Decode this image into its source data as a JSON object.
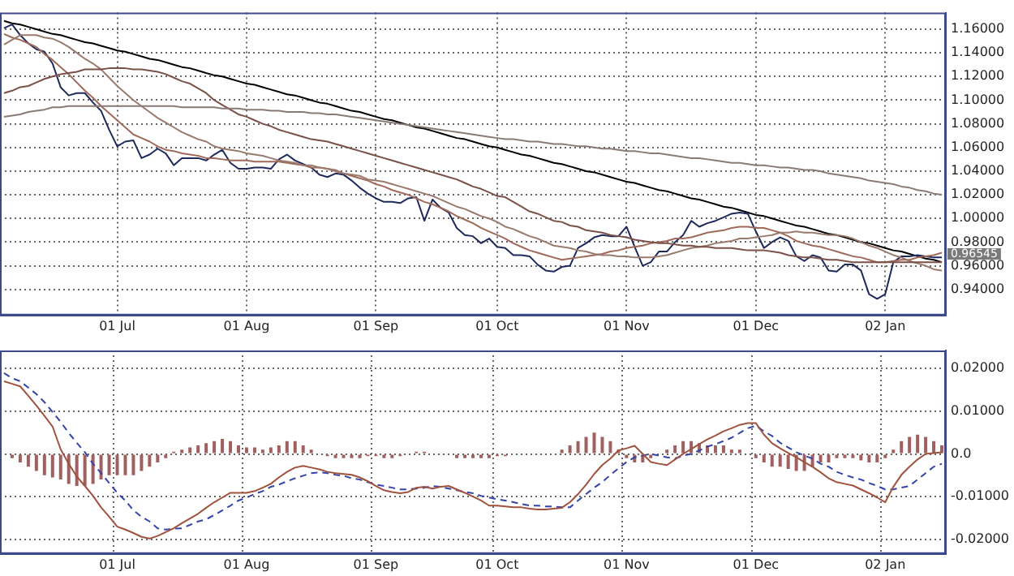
{
  "chart_data": [
    {
      "type": "line",
      "categories": [
        null,
        null,
        null,
        null,
        null,
        null,
        null,
        null,
        null,
        null,
        null,
        null,
        null,
        null,
        "01 Jul",
        null,
        null,
        null,
        null,
        null,
        null,
        null,
        null,
        null,
        null,
        null,
        null,
        null,
        null,
        null,
        "01 Aug",
        null,
        null,
        null,
        null,
        null,
        null,
        null,
        null,
        null,
        null,
        null,
        null,
        null,
        null,
        null,
        "01 Sep",
        null,
        null,
        null,
        null,
        null,
        null,
        null,
        null,
        null,
        null,
        null,
        null,
        null,
        null,
        "01 Oct",
        null,
        null,
        null,
        null,
        null,
        null,
        null,
        null,
        null,
        null,
        null,
        null,
        null,
        null,
        null,
        "01 Nov",
        null,
        null,
        null,
        null,
        null,
        null,
        null,
        null,
        null,
        null,
        null,
        null,
        null,
        null,
        null,
        "01 Dec",
        null,
        null,
        null,
        null,
        null,
        null,
        null,
        null,
        null,
        null,
        null,
        null,
        null,
        null,
        null,
        "02 Jan",
        null,
        null,
        null,
        null,
        null,
        null,
        null
      ],
      "series": [
        {
          "color": "#8a7a74",
          "values": [
            1.086,
            1.087,
            1.088,
            1.09,
            1.091,
            1.092,
            1.094,
            1.094,
            1.095,
            1.095,
            1.095,
            1.095,
            1.095,
            1.095,
            1.095,
            1.095,
            1.095,
            1.095,
            1.095,
            1.095,
            1.095,
            1.095,
            1.094,
            1.094,
            1.094,
            1.094,
            1.094,
            1.093,
            1.093,
            1.093,
            1.092,
            1.092,
            1.092,
            1.091,
            1.091,
            1.09,
            1.09,
            1.09,
            1.089,
            1.089,
            1.088,
            1.088,
            1.087,
            1.086,
            1.085,
            1.084,
            1.083,
            1.082,
            1.081,
            1.08,
            1.079,
            1.078,
            1.077,
            1.076,
            1.075,
            1.074,
            1.073,
            1.072,
            1.071,
            1.07,
            1.069,
            1.068,
            1.067,
            1.067,
            1.066,
            1.065,
            1.065,
            1.064,
            1.063,
            1.063,
            1.062,
            1.061,
            1.061,
            1.06,
            1.059,
            1.059,
            1.058,
            1.057,
            1.057,
            1.056,
            1.055,
            1.055,
            1.054,
            1.053,
            1.052,
            1.051,
            1.051,
            1.05,
            1.049,
            1.048,
            1.047,
            1.047,
            1.046,
            1.045,
            1.045,
            1.044,
            1.043,
            1.043,
            1.042,
            1.041,
            1.041,
            1.04,
            1.038,
            1.037,
            1.036,
            1.035,
            1.034,
            1.032,
            1.031,
            1.03,
            1.029,
            1.027,
            1.026,
            1.024,
            1.023,
            1.021,
            1.02
          ]
        },
        {
          "color": "#7a5048",
          "values": [
            1.106,
            1.108,
            1.111,
            1.112,
            1.115,
            1.118,
            1.12,
            1.122,
            1.123,
            1.124,
            1.126,
            1.126,
            1.126,
            1.127,
            1.127,
            1.127,
            1.126,
            1.126,
            1.125,
            1.124,
            1.122,
            1.119,
            1.116,
            1.114,
            1.11,
            1.106,
            1.1,
            1.096,
            1.092,
            1.088,
            1.086,
            1.083,
            1.08,
            1.078,
            1.075,
            1.073,
            1.071,
            1.069,
            1.067,
            1.066,
            1.065,
            1.063,
            1.061,
            1.059,
            1.057,
            1.055,
            1.053,
            1.051,
            1.049,
            1.047,
            1.045,
            1.043,
            1.041,
            1.039,
            1.037,
            1.035,
            1.033,
            1.03,
            1.027,
            1.025,
            1.022,
            1.019,
            1.018,
            1.014,
            1.01,
            1.006,
            1.004,
            1.001,
            0.998,
            0.997,
            0.994,
            0.993,
            0.99,
            0.989,
            0.988,
            0.986,
            0.985,
            0.984,
            0.982,
            0.981,
            0.98,
            0.979,
            0.979,
            0.978,
            0.977,
            0.977,
            0.976,
            0.976,
            0.975,
            0.975,
            0.975,
            0.974,
            0.973,
            0.973,
            0.973,
            0.972,
            0.971,
            0.969,
            0.968,
            0.967,
            0.967,
            0.966,
            0.965,
            0.965,
            0.964,
            0.963,
            0.963,
            0.963,
            0.963,
            0.963,
            0.963,
            0.963,
            0.963,
            0.963,
            0.963,
            0.963,
            0.963
          ]
        },
        {
          "color": "#9a7a6e",
          "values": [
            1.147,
            1.151,
            1.155,
            1.155,
            1.155,
            1.153,
            1.152,
            1.149,
            1.145,
            1.14,
            1.135,
            1.131,
            1.126,
            1.119,
            1.112,
            1.106,
            1.1,
            1.095,
            1.09,
            1.085,
            1.081,
            1.077,
            1.073,
            1.07,
            1.067,
            1.065,
            1.061,
            1.059,
            1.058,
            1.057,
            1.055,
            1.054,
            1.053,
            1.051,
            1.049,
            1.048,
            1.047,
            1.045,
            1.045,
            1.043,
            1.042,
            1.041,
            1.038,
            1.037,
            1.036,
            1.033,
            1.032,
            1.031,
            1.029,
            1.027,
            1.025,
            1.023,
            1.021,
            1.019,
            1.016,
            1.013,
            1.01,
            1.008,
            1.005,
            1.002,
            1.0,
            0.997,
            0.993,
            0.991,
            0.988,
            0.985,
            0.983,
            0.98,
            0.977,
            0.976,
            0.975,
            0.973,
            0.972,
            0.97,
            0.969,
            0.969,
            0.968,
            0.968,
            0.967,
            0.967,
            0.967,
            0.968,
            0.969,
            0.971,
            0.973,
            0.975,
            0.976,
            0.977,
            0.979,
            0.98,
            0.981,
            0.983,
            0.983,
            0.984,
            0.985,
            0.986,
            0.988,
            0.988,
            0.989,
            0.988,
            0.988,
            0.987,
            0.986,
            0.986,
            0.985,
            0.983,
            0.98,
            0.977,
            0.975,
            0.972,
            0.969,
            0.967,
            0.964,
            0.962,
            0.96,
            0.957,
            0.956
          ]
        },
        {
          "color": "#a06a5a",
          "values": [
            1.156,
            1.153,
            1.151,
            1.148,
            1.145,
            1.139,
            1.134,
            1.128,
            1.122,
            1.115,
            1.108,
            1.102,
            1.095,
            1.089,
            1.083,
            1.077,
            1.071,
            1.068,
            1.065,
            1.061,
            1.058,
            1.057,
            1.055,
            1.054,
            1.053,
            1.051,
            1.051,
            1.05,
            1.049,
            1.049,
            1.049,
            1.048,
            1.048,
            1.048,
            1.048,
            1.047,
            1.046,
            1.045,
            1.043,
            1.043,
            1.042,
            1.04,
            1.038,
            1.036,
            1.034,
            1.032,
            1.029,
            1.027,
            1.024,
            1.022,
            1.02,
            1.017,
            1.014,
            1.012,
            1.009,
            1.006,
            1.002,
            0.999,
            0.996,
            0.992,
            0.989,
            0.986,
            0.983,
            0.979,
            0.976,
            0.973,
            0.971,
            0.969,
            0.967,
            0.965,
            0.966,
            0.967,
            0.968,
            0.969,
            0.97,
            0.972,
            0.973,
            0.975,
            0.976,
            0.977,
            0.979,
            0.98,
            0.981,
            0.983,
            0.983,
            0.984,
            0.986,
            0.988,
            0.989,
            0.99,
            0.992,
            0.993,
            0.993,
            0.992,
            0.992,
            0.99,
            0.988,
            0.985,
            0.981,
            0.979,
            0.977,
            0.976,
            0.974,
            0.972,
            0.97,
            0.968,
            0.967,
            0.965,
            0.963,
            0.963,
            0.964,
            0.965,
            0.965,
            0.967,
            0.968,
            0.969,
            0.971
          ]
        },
        {
          "color": "#1f2a5c",
          "values": [
            1.161,
            1.164,
            1.155,
            1.148,
            1.143,
            1.141,
            1.131,
            1.111,
            1.104,
            1.106,
            1.106,
            1.098,
            1.091,
            1.075,
            1.061,
            1.065,
            1.066,
            1.051,
            1.054,
            1.059,
            1.055,
            1.045,
            1.051,
            1.051,
            1.051,
            1.049,
            1.054,
            1.058,
            1.047,
            1.042,
            1.042,
            1.043,
            1.043,
            1.042,
            1.05,
            1.054,
            1.049,
            1.046,
            1.043,
            1.037,
            1.035,
            1.038,
            1.037,
            1.032,
            1.026,
            1.021,
            1.017,
            1.014,
            1.014,
            1.013,
            1.017,
            1.018,
            0.998,
            1.016,
            1.009,
            1.005,
            0.992,
            0.986,
            0.985,
            0.979,
            0.983,
            0.976,
            0.975,
            0.969,
            0.969,
            0.968,
            0.961,
            0.956,
            0.955,
            0.959,
            0.96,
            0.975,
            0.979,
            0.984,
            0.986,
            0.985,
            0.985,
            0.993,
            0.976,
            0.96,
            0.963,
            0.972,
            0.972,
            0.98,
            0.986,
            0.998,
            0.993,
            0.996,
            0.998,
            1.001,
            1.004,
            1.005,
            1.004,
            0.989,
            0.975,
            0.98,
            0.984,
            0.981,
            0.968,
            0.964,
            0.969,
            0.967,
            0.956,
            0.955,
            0.961,
            0.961,
            0.956,
            0.936,
            0.932,
            0.936,
            0.963,
            0.968,
            0.968,
            0.969,
            0.968,
            0.967,
            0.967
          ]
        },
        {
          "type": "line",
          "color": "#000000",
          "values": [
            1.167,
            1.165,
            1.164,
            1.162,
            1.16,
            1.158,
            1.156,
            1.155,
            1.153,
            1.151,
            1.149,
            1.148,
            1.146,
            1.144,
            1.142,
            1.141,
            1.139,
            1.137,
            1.135,
            1.134,
            1.132,
            1.13,
            1.128,
            1.127,
            1.125,
            1.123,
            1.121,
            1.12,
            1.118,
            1.116,
            1.114,
            1.113,
            1.111,
            1.109,
            1.107,
            1.105,
            1.104,
            1.102,
            1.1,
            1.098,
            1.097,
            1.095,
            1.093,
            1.091,
            1.09,
            1.088,
            1.086,
            1.084,
            1.083,
            1.081,
            1.079,
            1.077,
            1.076,
            1.074,
            1.072,
            1.07,
            1.068,
            1.067,
            1.065,
            1.063,
            1.061,
            1.06,
            1.058,
            1.056,
            1.054,
            1.053,
            1.051,
            1.049,
            1.047,
            1.046,
            1.044,
            1.042,
            1.04,
            1.039,
            1.037,
            1.035,
            1.033,
            1.031,
            1.03,
            1.028,
            1.026,
            1.024,
            1.023,
            1.021,
            1.019,
            1.017,
            1.016,
            1.014,
            1.012,
            1.01,
            1.009,
            1.007,
            1.005,
            1.003,
            1.002,
            1.0,
            0.998,
            0.996,
            0.994,
            0.993,
            0.991,
            0.989,
            0.987,
            0.986,
            0.984,
            0.982,
            0.98,
            0.979,
            0.977,
            0.975,
            0.973,
            0.972,
            0.97,
            0.968,
            0.966,
            0.965,
            0.963
          ]
        }
      ],
      "ylim": [
        0.918,
        1.174
      ],
      "yticks": [
        {
          "value": 0.94,
          "label": "0.94000"
        },
        {
          "value": 0.96,
          "label": "0.96000"
        },
        {
          "value": 0.98,
          "label": "0.98000"
        },
        {
          "value": 1.0,
          "label": "1.00000"
        },
        {
          "value": 1.02,
          "label": "1.02000"
        },
        {
          "value": 1.04,
          "label": "1.04000"
        },
        {
          "value": 1.06,
          "label": "1.06000"
        },
        {
          "value": 1.08,
          "label": "1.08000"
        },
        {
          "value": 1.1,
          "label": "1.10000"
        },
        {
          "value": 1.12,
          "label": "1.12000"
        },
        {
          "value": 1.14,
          "label": "1.14000"
        },
        {
          "value": 1.16,
          "label": "1.16000"
        }
      ],
      "grid": true,
      "marker": "none",
      "line_style": "solid",
      "annotations": [
        "0.96545"
      ]
    },
    {
      "type": "line",
      "categories": [
        null,
        null,
        null,
        null,
        null,
        null,
        null,
        null,
        null,
        null,
        null,
        null,
        null,
        null,
        "01 Jul",
        null,
        null,
        null,
        null,
        null,
        null,
        null,
        null,
        null,
        null,
        null,
        null,
        null,
        null,
        null,
        "01 Aug",
        null,
        null,
        null,
        null,
        null,
        null,
        null,
        null,
        null,
        null,
        null,
        null,
        null,
        null,
        null,
        "01 Sep",
        null,
        null,
        null,
        null,
        null,
        null,
        null,
        null,
        null,
        null,
        null,
        null,
        null,
        null,
        "01 Oct",
        null,
        null,
        null,
        null,
        null,
        null,
        null,
        null,
        null,
        null,
        null,
        null,
        null,
        null,
        null,
        "01 Nov",
        null,
        null,
        null,
        null,
        null,
        null,
        null,
        null,
        null,
        null,
        null,
        null,
        null,
        null,
        null,
        "01 Dec",
        null,
        null,
        null,
        null,
        null,
        null,
        null,
        null,
        null,
        null,
        null,
        null,
        null,
        null,
        null,
        "02 Jan",
        null,
        null,
        null,
        null,
        null,
        null,
        null
      ],
      "series": [
        {
          "type": "bar",
          "color": "#a06060",
          "values": [
            0,
            -0.001,
            -0.002,
            -0.003,
            -0.004,
            -0.005,
            -0.0055,
            -0.006,
            -0.007,
            -0.0075,
            -0.0075,
            -0.007,
            -0.006,
            -0.005,
            -0.005,
            -0.005,
            -0.005,
            -0.004,
            -0.003,
            -0.002,
            -0.001,
            0.0005,
            0.001,
            0.0015,
            0.002,
            0.0025,
            0.003,
            0.0035,
            0.003,
            0.002,
            0.0015,
            0.0015,
            0.001,
            0.0015,
            0.002,
            0.003,
            0.003,
            0.002,
            0.001,
            0,
            -0.0005,
            -0.001,
            -0.001,
            -0.001,
            -0.001,
            -0.0005,
            -0.0005,
            -0.001,
            -0.001,
            -0.0005,
            0,
            0.0005,
            0.0005,
            0,
            0,
            0,
            -0.001,
            -0.001,
            -0.001,
            -0.001,
            -0.001,
            -0.0005,
            -0.0005,
            0,
            0,
            0,
            0,
            0,
            0,
            0.001,
            0.002,
            0.003,
            0.004,
            0.005,
            0.004,
            0.003,
            0.001,
            -0.001,
            -0.002,
            -0.002,
            -0.001,
            0,
            0.001,
            0.002,
            0.003,
            0.003,
            0.0025,
            0.002,
            0.002,
            0.002,
            0.001,
            0.001,
            0,
            -0.001,
            -0.002,
            -0.003,
            -0.003,
            -0.0035,
            -0.004,
            -0.004,
            -0.003,
            -0.002,
            -0.002,
            -0.001,
            -0.001,
            -0.001,
            -0.0015,
            -0.002,
            -0.002,
            -0.001,
            0.001,
            0.003,
            0.004,
            0.0045,
            0.004,
            0.003,
            0.002
          ]
        },
        {
          "color": "#a0523d",
          "values": [
            0.017,
            0.0164,
            0.0158,
            0.0136,
            0.0113,
            0.0089,
            0.0064,
            0.0011,
            -0.0023,
            -0.0053,
            -0.0075,
            -0.0098,
            -0.0125,
            -0.0147,
            -0.017,
            -0.0177,
            -0.0185,
            -0.0194,
            -0.0198,
            -0.0192,
            -0.0183,
            -0.0174,
            -0.0162,
            -0.0151,
            -0.014,
            -0.0126,
            -0.0113,
            -0.0102,
            -0.0091,
            -0.0091,
            -0.0091,
            -0.0087,
            -0.0079,
            -0.007,
            -0.0055,
            -0.0042,
            -0.0032,
            -0.0028,
            -0.0032,
            -0.0036,
            -0.0042,
            -0.0045,
            -0.0047,
            -0.0049,
            -0.0055,
            -0.0064,
            -0.0075,
            -0.0085,
            -0.0089,
            -0.0092,
            -0.0089,
            -0.0079,
            -0.0077,
            -0.0081,
            -0.0077,
            -0.0075,
            -0.0083,
            -0.0091,
            -0.01,
            -0.0109,
            -0.0121,
            -0.0121,
            -0.0123,
            -0.0125,
            -0.0125,
            -0.0128,
            -0.013,
            -0.013,
            -0.0128,
            -0.0126,
            -0.0113,
            -0.0094,
            -0.0072,
            -0.0047,
            -0.0026,
            -0.0011,
            0.0008,
            0.0013,
            0.0019,
            0,
            -0.0019,
            -0.0023,
            -0.0026,
            -0.0013,
            0,
            0.0011,
            0.0023,
            0.0034,
            0.0043,
            0.0053,
            0.006,
            0.0068,
            0.0072,
            0.0072,
            0.0045,
            0.0025,
            0.0013,
            0.0002,
            -0.0008,
            -0.0019,
            -0.003,
            -0.0043,
            -0.0057,
            -0.0066,
            -0.007,
            -0.0074,
            -0.0083,
            -0.0092,
            -0.0102,
            -0.0113,
            -0.0077,
            -0.0049,
            -0.003,
            -0.0013,
            0,
            0.0002,
            0.0004
          ]
        },
        {
          "color": "#3344aa",
          "line_style": "dashed",
          "values": [
            0.0189,
            0.0177,
            0.017,
            0.0155,
            0.014,
            0.0121,
            0.0098,
            0.0075,
            0.0049,
            0.0026,
            0.0004,
            -0.0023,
            -0.0045,
            -0.0068,
            -0.0091,
            -0.0109,
            -0.0132,
            -0.0147,
            -0.0158,
            -0.0174,
            -0.0177,
            -0.0175,
            -0.0174,
            -0.0166,
            -0.0158,
            -0.0153,
            -0.0143,
            -0.0132,
            -0.0121,
            -0.0109,
            -0.0102,
            -0.0094,
            -0.0087,
            -0.0077,
            -0.0072,
            -0.0064,
            -0.0057,
            -0.0051,
            -0.0045,
            -0.0043,
            -0.0045,
            -0.0049,
            -0.0051,
            -0.0057,
            -0.006,
            -0.0066,
            -0.0072,
            -0.0075,
            -0.0079,
            -0.0083,
            -0.0083,
            -0.0081,
            -0.0079,
            -0.0075,
            -0.0077,
            -0.0081,
            -0.0085,
            -0.0089,
            -0.0092,
            -0.0098,
            -0.0102,
            -0.0106,
            -0.0109,
            -0.0113,
            -0.0117,
            -0.0121,
            -0.0121,
            -0.0123,
            -0.0123,
            -0.0125,
            -0.0125,
            -0.0109,
            -0.0094,
            -0.0079,
            -0.0066,
            -0.0049,
            -0.0034,
            -0.0019,
            -0.0008,
            -0.0004,
            0,
            -0.0004,
            -0.0008,
            -0.0011,
            -0.0004,
            0,
            0.0008,
            0.0017,
            0.0023,
            0.003,
            0.0038,
            0.0049,
            0.006,
            0.0066,
            0.0053,
            0.0042,
            0.0026,
            0.0015,
            0.0004,
            -0.0004,
            -0.0011,
            -0.0023,
            -0.003,
            -0.0042,
            -0.0049,
            -0.0055,
            -0.006,
            -0.0068,
            -0.0075,
            -0.0083,
            -0.0083,
            -0.0079,
            -0.0075,
            -0.006,
            -0.0045,
            -0.003,
            -0.0023
          ]
        }
      ],
      "ylim": [
        -0.0234,
        0.0242
      ],
      "yticks": [
        {
          "value": -0.02,
          "label": "-0.02000"
        },
        {
          "value": -0.01,
          "label": "-0.01000"
        },
        {
          "value": 0,
          "label": "0.0"
        },
        {
          "value": 0.01,
          "label": "0.01000"
        },
        {
          "value": 0.02,
          "label": "0.02000"
        }
      ],
      "grid": true,
      "marker": "none",
      "line_style": "solid"
    }
  ]
}
